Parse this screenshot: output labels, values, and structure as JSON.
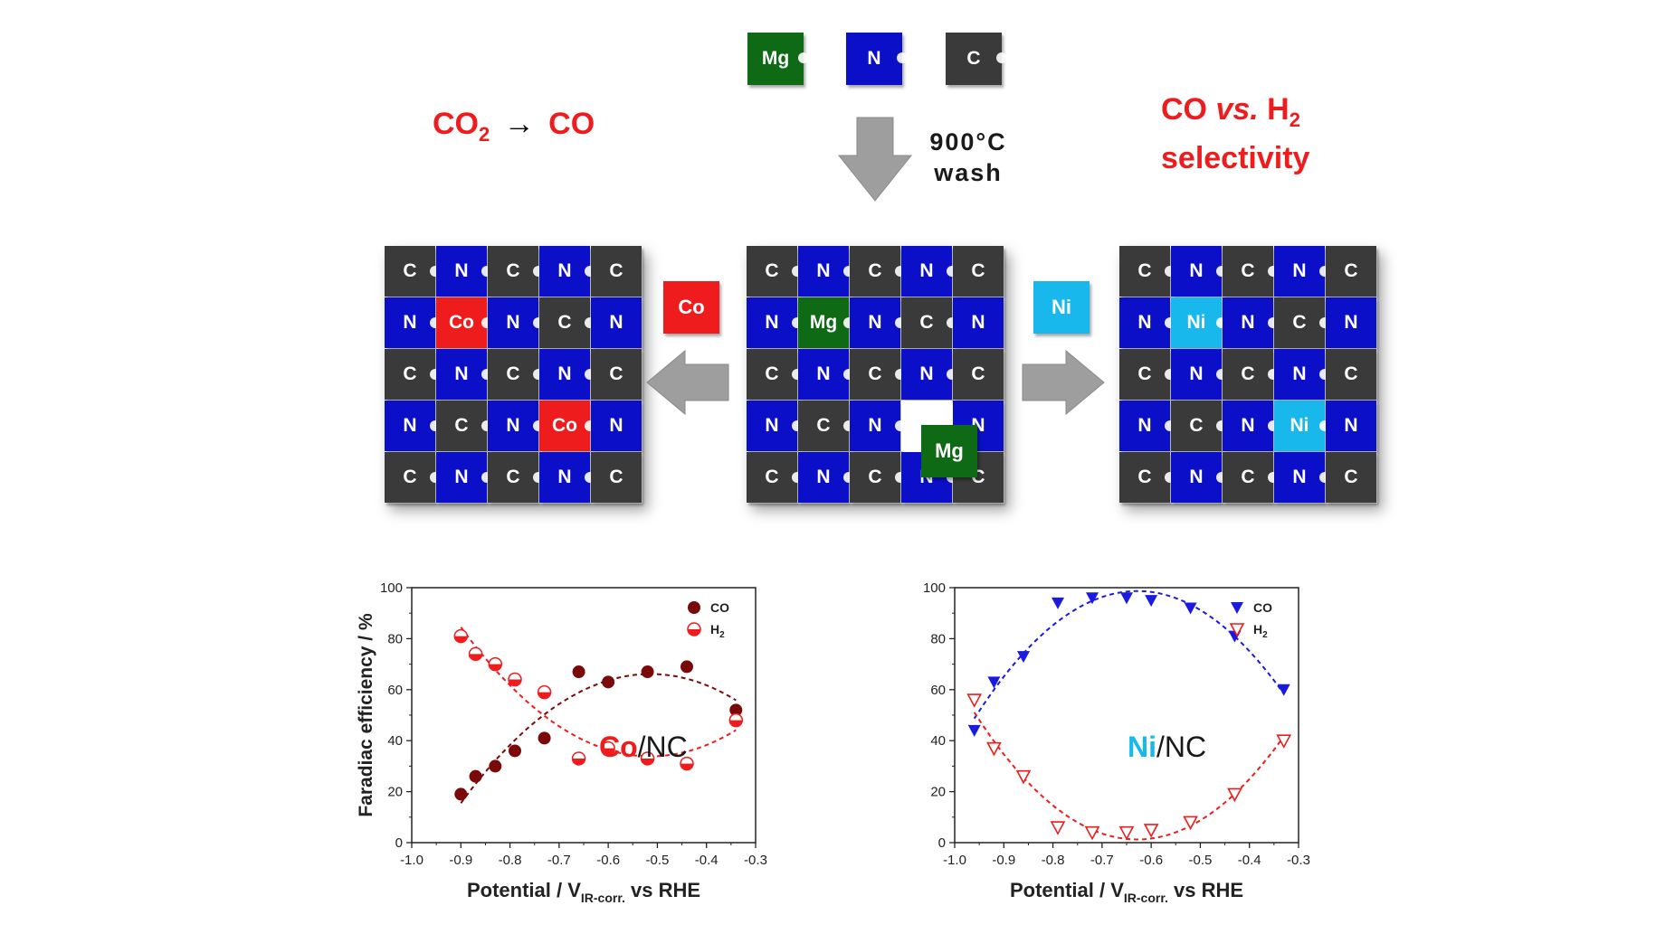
{
  "colors": {
    "C": "#3a3a3a",
    "N": "#0b10c8",
    "Mg": "#0f6a16",
    "Co": "#ee1c1c",
    "Ni": "#18b8ec",
    "accent_red": "#ee1c1c"
  },
  "top": {
    "reaction_from": "CO",
    "reaction_from_sub": "2",
    "reaction_arrow": "→",
    "reaction_to": "CO",
    "selectivity_line1_a": "CO ",
    "selectivity_line1_vs": "vs.",
    "selectivity_line1_b": " H",
    "selectivity_line1_sub": "2",
    "selectivity_line2": "selectivity",
    "step_line1": "900°C",
    "step_line2": "wash",
    "precursors": [
      "Mg",
      "N",
      "C"
    ]
  },
  "grids": {
    "left": [
      [
        "C",
        "N",
        "C",
        "N",
        "C"
      ],
      [
        "N",
        "Co",
        "N",
        "C",
        "N"
      ],
      [
        "C",
        "N",
        "C",
        "N",
        "C"
      ],
      [
        "N",
        "C",
        "N",
        "Co",
        "N"
      ],
      [
        "C",
        "N",
        "C",
        "N",
        "C"
      ]
    ],
    "middle": [
      [
        "C",
        "N",
        "C",
        "N",
        "C"
      ],
      [
        "N",
        "Mg",
        "N",
        "C",
        "N"
      ],
      [
        "C",
        "N",
        "C",
        "N",
        "C"
      ],
      [
        "N",
        "C",
        "N",
        "",
        "N"
      ],
      [
        "C",
        "N",
        "C",
        "N",
        "C"
      ]
    ],
    "middle_loose_mg": "Mg",
    "right": [
      [
        "C",
        "N",
        "C",
        "N",
        "C"
      ],
      [
        "N",
        "Ni",
        "N",
        "C",
        "N"
      ],
      [
        "C",
        "N",
        "C",
        "N",
        "C"
      ],
      [
        "N",
        "C",
        "N",
        "Ni",
        "N"
      ],
      [
        "C",
        "N",
        "C",
        "N",
        "C"
      ]
    ],
    "left_loose": "Co",
    "right_loose": "Ni"
  },
  "chart_data": [
    {
      "type": "scatter",
      "annotation_metal": "Co",
      "annotation_rest": "/NC",
      "ylabel": "Faradiac efficiency / %",
      "xlabel_prefix": "Potential / V",
      "xlabel_sub": "IR-corr.",
      "xlabel_suffix": " vs RHE",
      "xlim": [
        -1.0,
        -0.3
      ],
      "ylim": [
        0,
        100
      ],
      "xticks": [
        "-1.0",
        "-0.9",
        "-0.8",
        "-0.7",
        "-0.6",
        "-0.5",
        "-0.4",
        "-0.3"
      ],
      "yticks": [
        "0",
        "20",
        "40",
        "60",
        "80",
        "100"
      ],
      "legend_position": "top-right",
      "series": [
        {
          "name": "CO",
          "color": "#7a0a0a",
          "marker": "filled-circle",
          "x": [
            -0.9,
            -0.87,
            -0.83,
            -0.79,
            -0.73,
            -0.66,
            -0.6,
            -0.52,
            -0.44,
            -0.34
          ],
          "y": [
            19,
            26,
            30,
            36,
            41,
            67,
            63,
            67,
            69,
            52
          ]
        },
        {
          "name": "H",
          "name_sub": "2",
          "color": "#ee1c1c",
          "marker": "half-circle",
          "x": [
            -0.9,
            -0.87,
            -0.83,
            -0.79,
            -0.73,
            -0.66,
            -0.6,
            -0.52,
            -0.44,
            -0.34
          ],
          "y": [
            81,
            74,
            70,
            64,
            59,
            33,
            37,
            33,
            31,
            48
          ]
        }
      ]
    },
    {
      "type": "scatter",
      "annotation_metal": "Ni",
      "annotation_rest": "/NC",
      "ylabel": "",
      "xlabel_prefix": "Potential / V",
      "xlabel_sub": "IR-corr.",
      "xlabel_suffix": " vs RHE",
      "xlim": [
        -1.0,
        -0.3
      ],
      "ylim": [
        0,
        100
      ],
      "xticks": [
        "-1.0",
        "-0.9",
        "-0.8",
        "-0.7",
        "-0.6",
        "-0.5",
        "-0.4",
        "-0.3"
      ],
      "yticks": [
        "0",
        "20",
        "40",
        "60",
        "80",
        "100"
      ],
      "legend_position": "top-right",
      "series": [
        {
          "name": "CO",
          "color": "#1a1ae0",
          "marker": "filled-down-triangle",
          "x": [
            -0.96,
            -0.92,
            -0.86,
            -0.79,
            -0.72,
            -0.65,
            -0.6,
            -0.52,
            -0.43,
            -0.33
          ],
          "y": [
            44,
            63,
            73,
            94,
            96,
            96,
            95,
            92,
            81,
            60
          ]
        },
        {
          "name": "H",
          "name_sub": "2",
          "color": "#ee1c1c",
          "marker": "open-down-triangle",
          "x": [
            -0.96,
            -0.92,
            -0.86,
            -0.79,
            -0.72,
            -0.65,
            -0.6,
            -0.52,
            -0.43,
            -0.33
          ],
          "y": [
            56,
            37,
            26,
            6,
            4,
            4,
            5,
            8,
            19,
            40
          ]
        }
      ]
    }
  ]
}
